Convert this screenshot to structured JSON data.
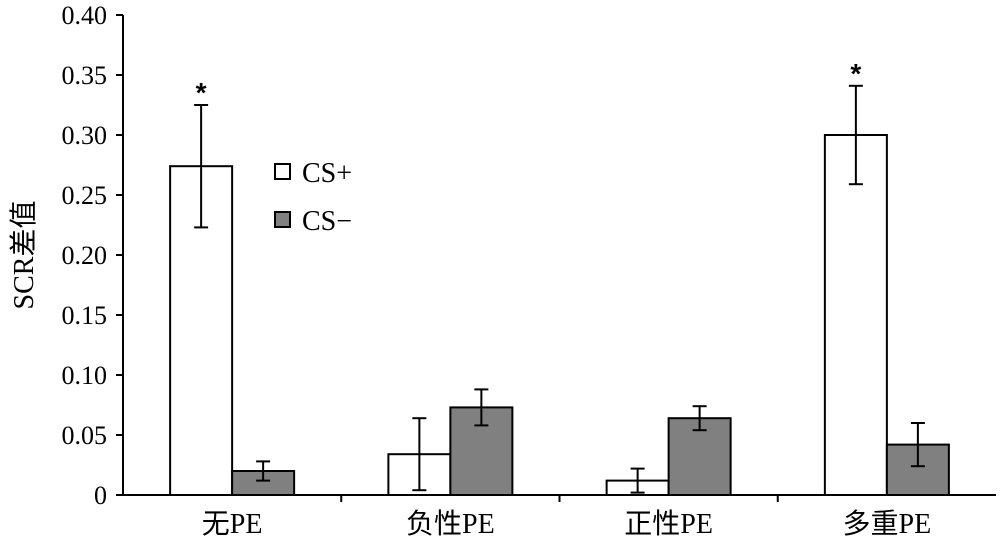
{
  "chart_data": {
    "type": "bar",
    "title": "",
    "xlabel": "",
    "ylabel": "SCR差值",
    "ylim": [
      0,
      0.4
    ],
    "yticks": [
      "0",
      "0.05",
      "0.10",
      "0.15",
      "0.20",
      "0.25",
      "0.30",
      "0.35",
      "0.40"
    ],
    "ytick_values": [
      0,
      0.05,
      0.1,
      0.15,
      0.2,
      0.25,
      0.3,
      0.35,
      0.4
    ],
    "categories": [
      "无PE",
      "负性PE",
      "正性PE",
      "多重PE"
    ],
    "series": [
      {
        "name": "CS+",
        "color": "#ffffff",
        "values": [
          0.274,
          0.034,
          0.012,
          0.3
        ],
        "errors": [
          0.051,
          0.03,
          0.01,
          0.041
        ]
      },
      {
        "name": "CS−",
        "color": "#808080",
        "values": [
          0.02,
          0.073,
          0.064,
          0.042
        ],
        "errors": [
          0.008,
          0.015,
          0.01,
          0.018
        ]
      }
    ],
    "annotations": [
      {
        "category_index": 0,
        "series_index": 0,
        "text": "*"
      },
      {
        "category_index": 3,
        "series_index": 0,
        "text": "*"
      }
    ],
    "legend": {
      "position": "upper-left-inside",
      "markers": [
        "square-white",
        "square-gray"
      ]
    },
    "grid": false
  }
}
